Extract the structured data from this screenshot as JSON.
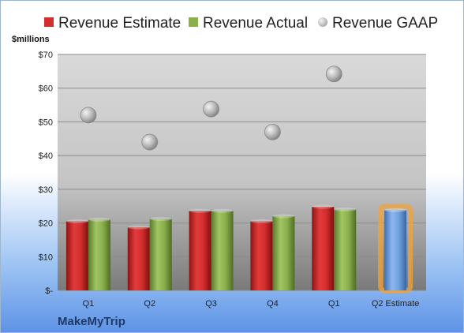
{
  "chart_data": {
    "type": "bar",
    "ylabel": "$millions",
    "ylim": [
      0,
      70
    ],
    "yticks": [
      0,
      10,
      20,
      30,
      40,
      50,
      60,
      70
    ],
    "ytick_labels": [
      "$-",
      "$10",
      "$20",
      "$30",
      "$40",
      "$50",
      "$60",
      "$70"
    ],
    "categories": [
      "Q1",
      "Q2",
      "Q3",
      "Q4",
      "Q1",
      "Q2 Estimate"
    ],
    "series": [
      {
        "name": "Revenue Estimate",
        "type": "bar",
        "color": "#d42d2d",
        "values": [
          20.5,
          18.7,
          23.6,
          20.5,
          24.8,
          null
        ]
      },
      {
        "name": "Revenue Actual",
        "type": "bar",
        "color": "#8ab04e",
        "values": [
          21.0,
          21.2,
          23.6,
          22.0,
          24.0,
          null
        ]
      },
      {
        "name": "Revenue GAAP",
        "type": "scatter",
        "color": "#b4b4b4",
        "values": [
          52.0,
          44.0,
          53.8,
          47.0,
          64.2,
          null
        ]
      },
      {
        "name": "Q2 Estimate",
        "type": "bar",
        "color": "#6fa2e0",
        "highlight": "#f2a43a",
        "values": [
          null,
          null,
          null,
          null,
          null,
          23.8
        ]
      }
    ],
    "grid": true,
    "legend_position": "top"
  },
  "brand": "MakeMyTrip"
}
